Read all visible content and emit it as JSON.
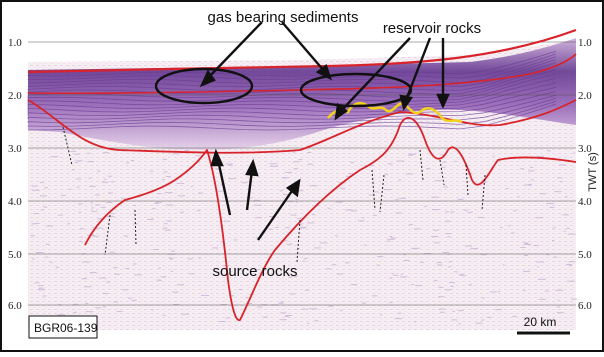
{
  "section_id": "BGR06-139",
  "scale_bar_label": "20 km",
  "annotations": {
    "gas": "gas bearing sediments",
    "reservoir": "reservoir rocks",
    "source": "source rocks"
  },
  "y_axis_label": "TWT (s)",
  "y_ticks_left": [
    "1.0",
    "2.0",
    "3.0",
    "4.0",
    "5.0",
    "6.0"
  ],
  "y_ticks_right": [
    "1.0",
    "2.0",
    "3.0",
    "4.0",
    "5.0",
    "6.0"
  ],
  "colors": {
    "horizon": "#d8232a",
    "reservoir": "#f2d21a",
    "seismic": "#7a3fa0",
    "ellipse": "#111111",
    "arrow": "#111111"
  }
}
